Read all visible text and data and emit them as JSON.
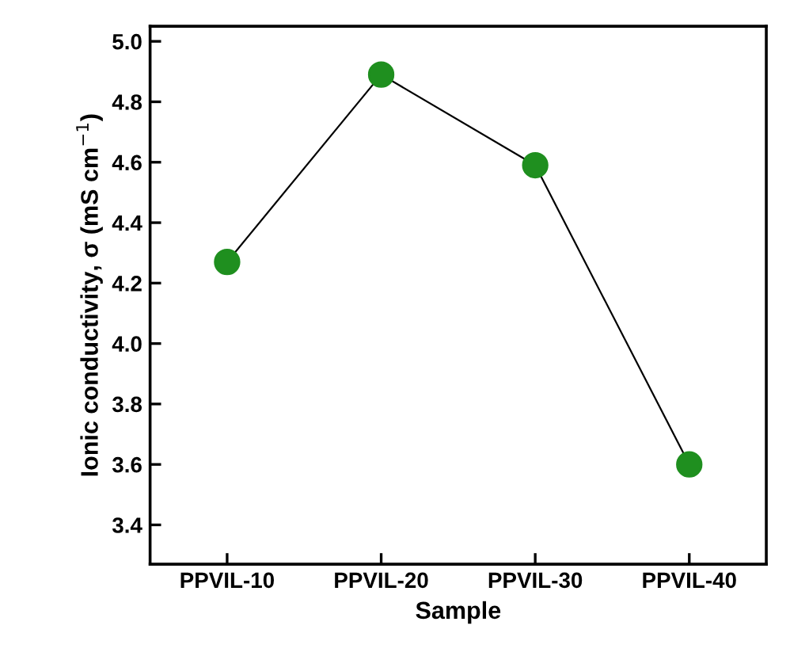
{
  "chart_data": {
    "type": "line",
    "xlabel": "Sample",
    "ylabel": "Ionic conductivity, σ (mS cm$^{−1}$)",
    "categories": [
      "PPVIL-10",
      "PPVIL-20",
      "PPVIL-30",
      "PPVIL-40"
    ],
    "series": [
      {
        "color": "#1f8f1f",
        "values": [
          4.27,
          4.89,
          4.59,
          3.6
        ]
      }
    ],
    "ylim": [
      3.27,
      5.05
    ],
    "yticks": [
      3.4,
      3.6,
      3.8,
      {
        "value": 4,
        "label": "4.0"
      },
      4.2,
      4.4,
      4.6,
      4.8,
      {
        "value": 5,
        "label": "5.0"
      }
    ],
    "marker": "circle",
    "line_style": "solid"
  }
}
